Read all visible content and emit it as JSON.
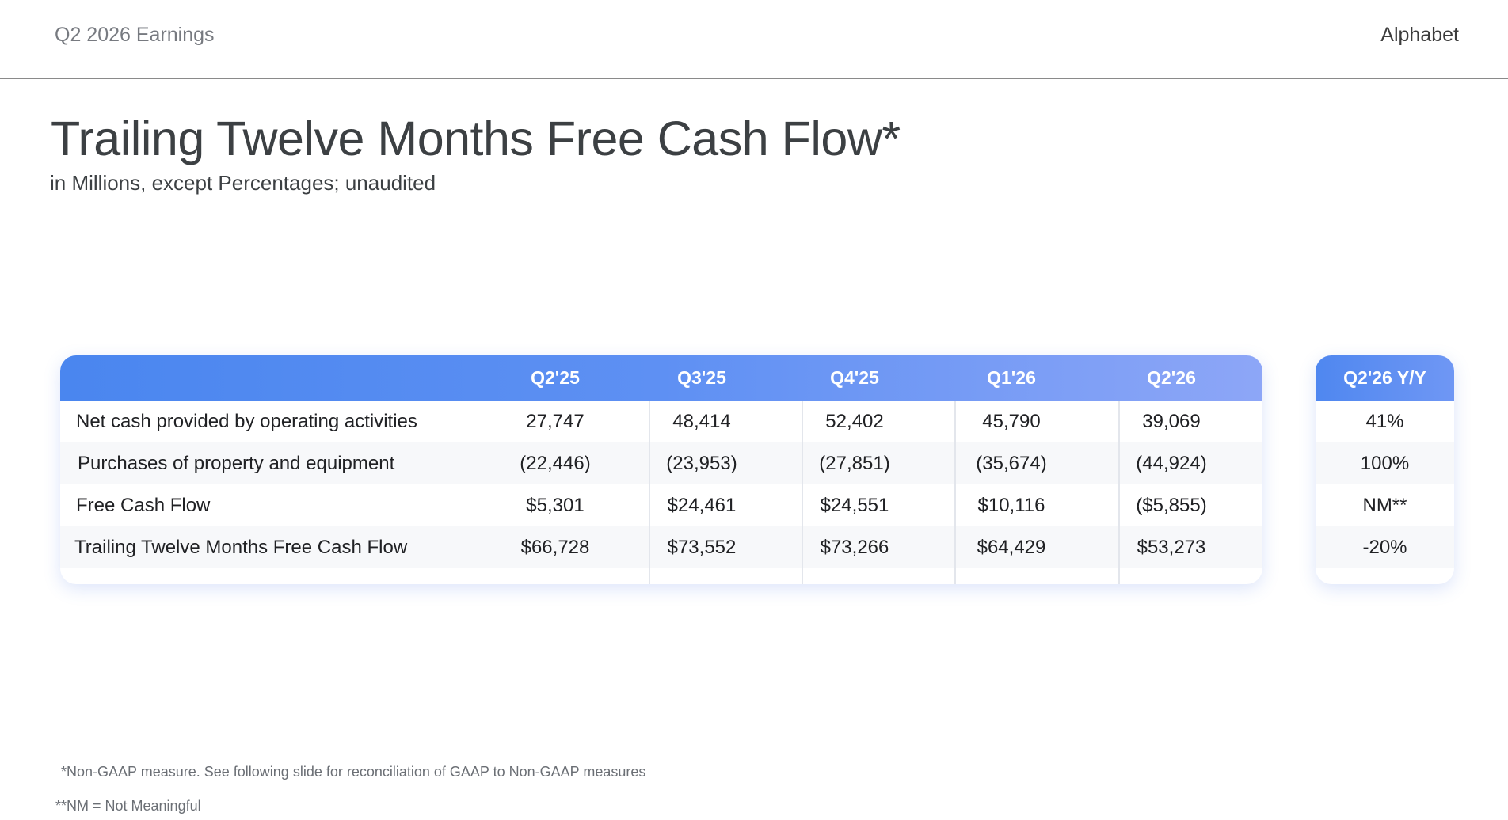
{
  "header": {
    "doc_label": "Q2 2026 Earnings",
    "brand": "Alphabet"
  },
  "title": "Trailing Twelve Months Free Cash Flow*",
  "subtitle": "in Millions, except Percentages; unaudited",
  "table": {
    "columns": [
      "Q2'25",
      "Q3'25",
      "Q4'25",
      "Q1'26",
      "Q2'26"
    ],
    "rows": [
      {
        "label": "Net cash provided by operating activities",
        "values": [
          "27,747",
          "48,414",
          "52,402",
          "45,790",
          "39,069"
        ],
        "yy": "41%"
      },
      {
        "label": "Purchases of property and equipment",
        "values": [
          "(22,446)",
          "(23,953)",
          "(27,851)",
          "(35,674)",
          "(44,924)"
        ],
        "yy": "100%"
      },
      {
        "label": "Free Cash Flow",
        "values": [
          "$5,301",
          "$24,461",
          "$24,551",
          "$10,116",
          "($5,855)"
        ],
        "yy": "NM**"
      },
      {
        "label": "Trailing Twelve Months Free Cash Flow",
        "values": [
          "$66,728",
          "$73,552",
          "$73,266",
          "$64,429",
          "$53,273"
        ],
        "yy": "-20%"
      }
    ],
    "yy_header": "Q2'26 Y/Y"
  },
  "footnotes": [
    "*Non-GAAP measure. See following slide for reconciliation of GAAP to Non-GAAP measures",
    "**NM = Not Meaningful"
  ]
}
